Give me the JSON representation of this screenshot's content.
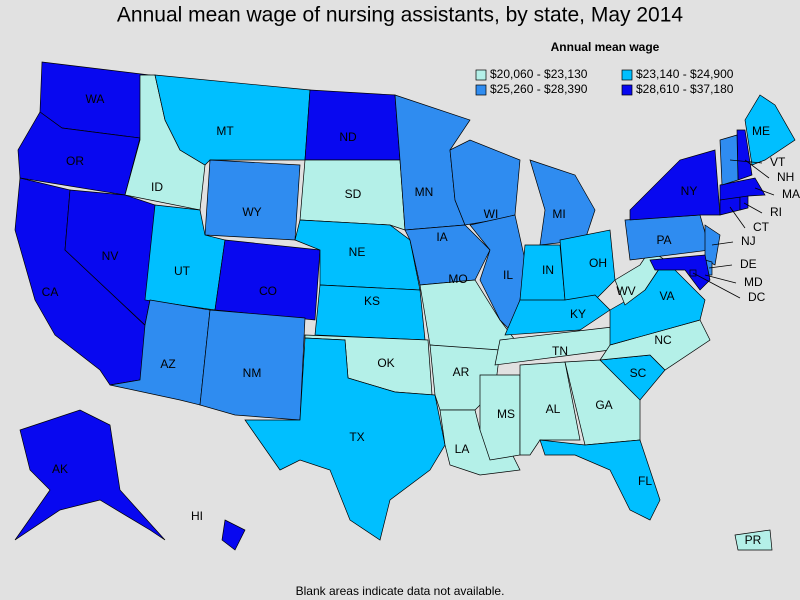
{
  "title": "Annual mean wage of nursing assistants, by state, May 2014",
  "legend": {
    "title": "Annual mean wage",
    "bins": [
      {
        "label": "$20,060 - $23,130",
        "color": "#b4f0e8"
      },
      {
        "label": "$23,140 - $24,900",
        "color": "#00bfff"
      },
      {
        "label": "$25,260 - $28,390",
        "color": "#2f8cf0"
      },
      {
        "label": "$28,610 - $37,180",
        "color": "#0808f0"
      }
    ]
  },
  "states": [
    {
      "label": "WA",
      "bin": 3
    },
    {
      "label": "OR",
      "bin": 3
    },
    {
      "label": "CA",
      "bin": 3
    },
    {
      "label": "NV",
      "bin": 3
    },
    {
      "label": "ID",
      "bin": 0
    },
    {
      "label": "MT",
      "bin": 1
    },
    {
      "label": "WY",
      "bin": 2
    },
    {
      "label": "UT",
      "bin": 1
    },
    {
      "label": "AZ",
      "bin": 2
    },
    {
      "label": "CO",
      "bin": 3
    },
    {
      "label": "NM",
      "bin": 2
    },
    {
      "label": "ND",
      "bin": 3
    },
    {
      "label": "SD",
      "bin": 0
    },
    {
      "label": "NE",
      "bin": 1
    },
    {
      "label": "KS",
      "bin": 1
    },
    {
      "label": "OK",
      "bin": 0
    },
    {
      "label": "TX",
      "bin": 1
    },
    {
      "label": "MN",
      "bin": 2
    },
    {
      "label": "IA",
      "bin": 2
    },
    {
      "label": "MO",
      "bin": 0
    },
    {
      "label": "AR",
      "bin": 0
    },
    {
      "label": "LA",
      "bin": 0
    },
    {
      "label": "WI",
      "bin": 2
    },
    {
      "label": "IL",
      "bin": 2
    },
    {
      "label": "MI",
      "bin": 2
    },
    {
      "label": "IN",
      "bin": 1
    },
    {
      "label": "OH",
      "bin": 1
    },
    {
      "label": "KY",
      "bin": 1
    },
    {
      "label": "TN",
      "bin": 0
    },
    {
      "label": "MS",
      "bin": 0
    },
    {
      "label": "AL",
      "bin": 0
    },
    {
      "label": "GA",
      "bin": 0
    },
    {
      "label": "FL",
      "bin": 1
    },
    {
      "label": "SC",
      "bin": 1
    },
    {
      "label": "NC",
      "bin": 0
    },
    {
      "label": "VA",
      "bin": 1
    },
    {
      "label": "WV",
      "bin": 0
    },
    {
      "label": "PA",
      "bin": 2
    },
    {
      "label": "NY",
      "bin": 3
    },
    {
      "label": "NJ",
      "bin": 2
    },
    {
      "label": "DE",
      "bin": 2
    },
    {
      "label": "MD",
      "bin": 3
    },
    {
      "label": "DC",
      "bin": 3
    },
    {
      "label": "CT",
      "bin": 3
    },
    {
      "label": "RI",
      "bin": 3
    },
    {
      "label": "MA",
      "bin": 3
    },
    {
      "label": "NH",
      "bin": 3
    },
    {
      "label": "VT",
      "bin": 2
    },
    {
      "label": "ME",
      "bin": 1
    },
    {
      "label": "AK",
      "bin": 3
    },
    {
      "label": "HI",
      "bin": 3
    },
    {
      "label": "PR",
      "bin": 0
    }
  ],
  "footnote": "Blank areas indicate data not available."
}
